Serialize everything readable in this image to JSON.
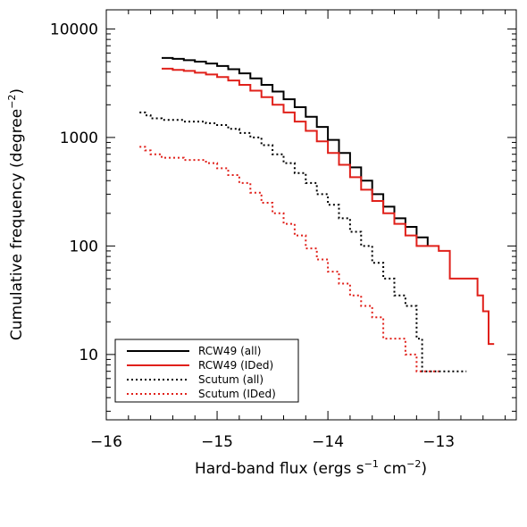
{
  "chart_data": {
    "type": "line",
    "xlabel": "Hard-band flux (ergs s",
    "xlabel_sup1": "−1",
    "xlabel_mid": " cm",
    "xlabel_sup2": "−2",
    "xlabel_end": ")",
    "ylabel": "Cumulative frequency (degree",
    "ylabel_sup": "−2",
    "ylabel_end": ")",
    "xlim": [
      -16.0,
      -12.3
    ],
    "ylim": [
      2.5,
      15000
    ],
    "yscale": "log",
    "x_ticks": [
      -16,
      -15,
      -14,
      -13
    ],
    "x_tick_labels": [
      "−16",
      "−15",
      "−14",
      "−13"
    ],
    "y_ticks": [
      10,
      100,
      1000,
      10000
    ],
    "y_tick_labels": [
      "10",
      "100",
      "1000",
      "10000"
    ],
    "legend_position": "bottom-left",
    "series": [
      {
        "name": "RCW49 (all)",
        "color": "#000000",
        "style": "solid",
        "points": [
          [
            -15.5,
            5400
          ],
          [
            -15.4,
            5300
          ],
          [
            -15.3,
            5150
          ],
          [
            -15.2,
            5000
          ],
          [
            -15.1,
            4800
          ],
          [
            -15.0,
            4550
          ],
          [
            -14.9,
            4250
          ],
          [
            -14.8,
            3900
          ],
          [
            -14.7,
            3500
          ],
          [
            -14.6,
            3050
          ],
          [
            -14.5,
            2650
          ],
          [
            -14.4,
            2250
          ],
          [
            -14.3,
            1900
          ],
          [
            -14.2,
            1550
          ],
          [
            -14.1,
            1250
          ],
          [
            -14.0,
            950
          ],
          [
            -13.9,
            720
          ],
          [
            -13.8,
            530
          ],
          [
            -13.7,
            400
          ],
          [
            -13.6,
            300
          ],
          [
            -13.5,
            230
          ],
          [
            -13.4,
            180
          ],
          [
            -13.3,
            150
          ],
          [
            -13.2,
            120
          ],
          [
            -13.1,
            100
          ]
        ]
      },
      {
        "name": "RCW49 (IDed)",
        "color": "#e0201a",
        "style": "solid",
        "points": [
          [
            -15.5,
            4300
          ],
          [
            -15.4,
            4200
          ],
          [
            -15.3,
            4100
          ],
          [
            -15.2,
            3950
          ],
          [
            -15.1,
            3800
          ],
          [
            -15.0,
            3600
          ],
          [
            -14.9,
            3350
          ],
          [
            -14.8,
            3050
          ],
          [
            -14.7,
            2700
          ],
          [
            -14.6,
            2350
          ],
          [
            -14.5,
            2000
          ],
          [
            -14.4,
            1700
          ],
          [
            -14.3,
            1400
          ],
          [
            -14.2,
            1150
          ],
          [
            -14.1,
            920
          ],
          [
            -14.0,
            720
          ],
          [
            -13.9,
            560
          ],
          [
            -13.8,
            430
          ],
          [
            -13.7,
            330
          ],
          [
            -13.6,
            260
          ],
          [
            -13.5,
            200
          ],
          [
            -13.4,
            160
          ],
          [
            -13.3,
            125
          ],
          [
            -13.2,
            100
          ],
          [
            -13.0,
            90
          ],
          [
            -12.9,
            50
          ],
          [
            -12.7,
            50
          ],
          [
            -12.65,
            35
          ],
          [
            -12.6,
            25
          ],
          [
            -12.55,
            12.5
          ],
          [
            -12.5,
            12.5
          ]
        ]
      },
      {
        "name": "Scutum (all)",
        "color": "#000000",
        "style": "dotted",
        "points": [
          [
            -15.7,
            1700
          ],
          [
            -15.65,
            1600
          ],
          [
            -15.6,
            1500
          ],
          [
            -15.5,
            1450
          ],
          [
            -15.3,
            1400
          ],
          [
            -15.1,
            1350
          ],
          [
            -15.0,
            1300
          ],
          [
            -14.9,
            1200
          ],
          [
            -14.8,
            1100
          ],
          [
            -14.7,
            1000
          ],
          [
            -14.6,
            850
          ],
          [
            -14.5,
            700
          ],
          [
            -14.4,
            580
          ],
          [
            -14.3,
            470
          ],
          [
            -14.2,
            380
          ],
          [
            -14.1,
            300
          ],
          [
            -14.0,
            240
          ],
          [
            -13.9,
            180
          ],
          [
            -13.8,
            135
          ],
          [
            -13.7,
            100
          ],
          [
            -13.6,
            70
          ],
          [
            -13.5,
            50
          ],
          [
            -13.4,
            35
          ],
          [
            -13.3,
            28
          ],
          [
            -13.2,
            14
          ],
          [
            -13.15,
            7
          ],
          [
            -12.8,
            7
          ],
          [
            -12.75,
            7
          ]
        ]
      },
      {
        "name": "Scutum (IDed)",
        "color": "#e0201a",
        "style": "dotted",
        "points": [
          [
            -15.7,
            820
          ],
          [
            -15.65,
            760
          ],
          [
            -15.6,
            700
          ],
          [
            -15.5,
            650
          ],
          [
            -15.3,
            620
          ],
          [
            -15.1,
            580
          ],
          [
            -15.0,
            520
          ],
          [
            -14.9,
            450
          ],
          [
            -14.8,
            380
          ],
          [
            -14.7,
            310
          ],
          [
            -14.6,
            250
          ],
          [
            -14.5,
            200
          ],
          [
            -14.4,
            160
          ],
          [
            -14.3,
            125
          ],
          [
            -14.2,
            95
          ],
          [
            -14.1,
            75
          ],
          [
            -14.0,
            58
          ],
          [
            -13.9,
            45
          ],
          [
            -13.8,
            35
          ],
          [
            -13.7,
            28
          ],
          [
            -13.6,
            22
          ],
          [
            -13.5,
            14
          ],
          [
            -13.3,
            10
          ],
          [
            -13.2,
            7
          ],
          [
            -13.0,
            7
          ]
        ]
      }
    ]
  }
}
